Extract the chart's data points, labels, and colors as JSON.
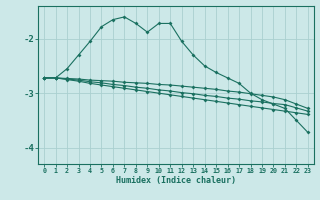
{
  "xlabel": "Humidex (Indice chaleur)",
  "background_color": "#cce8e8",
  "grid_color": "#aad0d0",
  "line_color": "#1a7060",
  "xlim": [
    -0.5,
    23.5
  ],
  "ylim": [
    -4.3,
    -1.4
  ],
  "yticks": [
    -4,
    -3,
    -2
  ],
  "xticks": [
    0,
    1,
    2,
    3,
    4,
    5,
    6,
    7,
    8,
    9,
    10,
    11,
    12,
    13,
    14,
    15,
    16,
    17,
    18,
    19,
    20,
    21,
    22,
    23
  ],
  "curve_x": [
    0,
    1,
    2,
    3,
    4,
    5,
    6,
    7,
    8,
    9,
    10,
    11,
    12,
    13,
    14,
    15,
    16,
    17,
    18,
    19,
    20,
    21,
    22,
    23
  ],
  "curve_y": [
    -2.72,
    -2.72,
    -2.55,
    -2.3,
    -2.05,
    -1.78,
    -1.65,
    -1.6,
    -1.72,
    -1.88,
    -1.72,
    -1.72,
    -2.05,
    -2.3,
    -2.5,
    -2.62,
    -2.72,
    -2.82,
    -3.0,
    -3.12,
    -3.2,
    -3.28,
    -3.5,
    -3.72
  ],
  "linA_x": [
    0,
    1,
    2,
    3,
    4,
    5,
    6,
    7,
    8,
    9,
    10,
    11,
    12,
    13,
    14,
    15,
    16,
    17,
    18,
    19,
    20,
    21,
    22,
    23
  ],
  "linA_y": [
    -2.72,
    -2.72,
    -2.75,
    -2.78,
    -2.82,
    -2.85,
    -2.88,
    -2.91,
    -2.94,
    -2.97,
    -3.0,
    -3.03,
    -3.06,
    -3.09,
    -3.12,
    -3.15,
    -3.18,
    -3.21,
    -3.24,
    -3.27,
    -3.3,
    -3.33,
    -3.36,
    -3.39
  ],
  "linB_x": [
    0,
    1,
    2,
    3,
    4,
    5,
    6,
    7,
    8,
    9,
    10,
    11,
    12,
    13,
    14,
    15,
    16,
    17,
    18,
    19,
    20,
    21,
    22,
    23
  ],
  "linB_y": [
    -2.72,
    -2.72,
    -2.74,
    -2.76,
    -2.79,
    -2.81,
    -2.84,
    -2.86,
    -2.89,
    -2.91,
    -2.94,
    -2.96,
    -2.99,
    -3.01,
    -3.04,
    -3.06,
    -3.09,
    -3.11,
    -3.14,
    -3.16,
    -3.19,
    -3.21,
    -3.27,
    -3.33
  ],
  "linC_x": [
    0,
    1,
    2,
    3,
    4,
    5,
    6,
    7,
    8,
    9,
    10,
    11,
    12,
    13,
    14,
    15,
    16,
    17,
    18,
    19,
    20,
    21,
    22,
    23
  ],
  "linC_y": [
    -2.72,
    -2.72,
    -2.73,
    -2.74,
    -2.76,
    -2.77,
    -2.78,
    -2.8,
    -2.81,
    -2.82,
    -2.84,
    -2.85,
    -2.87,
    -2.89,
    -2.91,
    -2.93,
    -2.96,
    -2.98,
    -3.01,
    -3.04,
    -3.07,
    -3.12,
    -3.2,
    -3.28
  ]
}
